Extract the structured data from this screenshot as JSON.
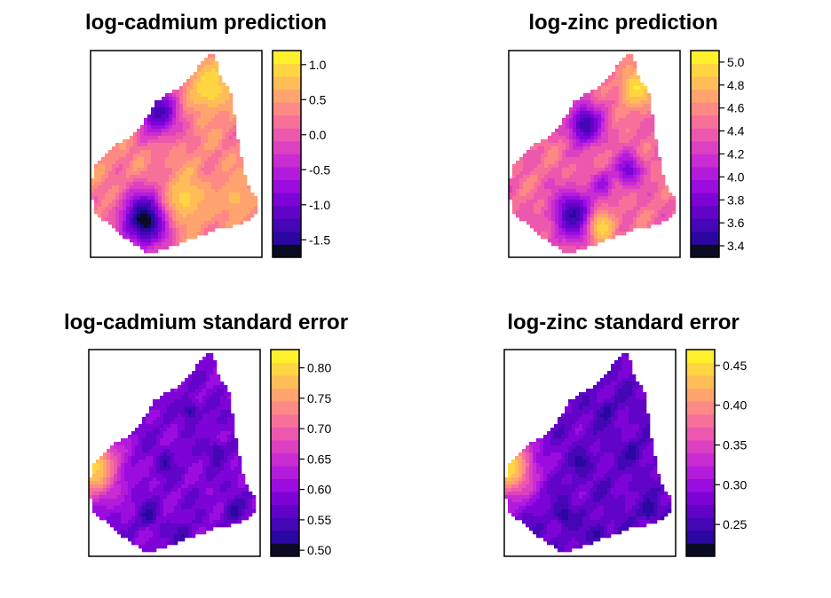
{
  "palette": [
    "#0d0887",
    "#2a07a0",
    "#4506b5",
    "#6203c8",
    "#7d03d6",
    "#9a0dde",
    "#b31bdc",
    "#c92cd2",
    "#dc41c2",
    "#ec58ae",
    "#f7709a",
    "#fd8a85",
    "#ffa46f",
    "#ffbd58",
    "#ffd542",
    "#fff02c"
  ],
  "palette_dark_end": "#0b0b24",
  "chart_data": [
    {
      "type": "heatmap",
      "title": "log-cadmium prediction",
      "legend_ticks": [
        "1.0",
        "0.5",
        "0.0",
        "-0.5",
        "-1.0",
        "-1.5"
      ],
      "legend_range": [
        -1.75,
        1.2
      ],
      "tick_values": [
        1.0,
        0.5,
        0.0,
        -0.5,
        -1.0,
        -1.5
      ],
      "base_level": 0.35,
      "hotspots": [
        {
          "u": 0.4,
          "v": 0.3,
          "r": 0.12,
          "level": -1.3
        },
        {
          "u": 0.32,
          "v": 0.82,
          "r": 0.14,
          "level": -1.8
        },
        {
          "u": 0.7,
          "v": 0.18,
          "r": 0.12,
          "level": 1.0
        },
        {
          "u": 0.55,
          "v": 0.72,
          "r": 0.12,
          "level": 0.9
        },
        {
          "u": 0.85,
          "v": 0.72,
          "r": 0.1,
          "level": 0.7
        }
      ]
    },
    {
      "type": "heatmap",
      "title": "log-zinc prediction",
      "legend_ticks": [
        "5.0",
        "4.8",
        "4.6",
        "4.4",
        "4.2",
        "4.0",
        "3.8",
        "3.6",
        "3.4"
      ],
      "legend_range": [
        3.3,
        5.1
      ],
      "tick_values": [
        5.0,
        4.8,
        4.6,
        4.4,
        4.2,
        4.0,
        3.8,
        3.6,
        3.4
      ],
      "base_level": 4.45,
      "hotspots": [
        {
          "u": 0.45,
          "v": 0.36,
          "r": 0.1,
          "level": 3.55
        },
        {
          "u": 0.7,
          "v": 0.58,
          "r": 0.08,
          "level": 3.8
        },
        {
          "u": 0.38,
          "v": 0.8,
          "r": 0.12,
          "level": 3.5
        },
        {
          "u": 0.75,
          "v": 0.18,
          "r": 0.1,
          "level": 5.0
        },
        {
          "u": 0.55,
          "v": 0.86,
          "r": 0.08,
          "level": 4.95
        },
        {
          "u": 0.55,
          "v": 0.65,
          "r": 0.06,
          "level": 3.9
        }
      ]
    },
    {
      "type": "heatmap",
      "title": "log-cadmium standard error",
      "legend_ticks": [
        "0.80",
        "0.75",
        "0.70",
        "0.65",
        "0.60",
        "0.55",
        "0.50"
      ],
      "legend_range": [
        0.49,
        0.83
      ],
      "tick_values": [
        0.8,
        0.75,
        0.7,
        0.65,
        0.6,
        0.55,
        0.5
      ],
      "base_level": 0.585,
      "hotspots": [
        {
          "u": 0.02,
          "v": 0.57,
          "r": 0.16,
          "level": 0.8
        },
        {
          "u": 0.45,
          "v": 0.55,
          "r": 0.05,
          "level": 0.53
        },
        {
          "u": 0.6,
          "v": 0.3,
          "r": 0.05,
          "level": 0.53
        },
        {
          "u": 0.35,
          "v": 0.8,
          "r": 0.05,
          "level": 0.52
        },
        {
          "u": 0.75,
          "v": 0.5,
          "r": 0.05,
          "level": 0.53
        },
        {
          "u": 0.85,
          "v": 0.78,
          "r": 0.05,
          "level": 0.52
        },
        {
          "u": 0.55,
          "v": 0.9,
          "r": 0.05,
          "level": 0.53
        }
      ]
    },
    {
      "type": "heatmap",
      "title": "log-zinc standard error",
      "legend_ticks": [
        "0.45",
        "0.40",
        "0.35",
        "0.30",
        "0.25"
      ],
      "legend_range": [
        0.21,
        0.47
      ],
      "tick_values": [
        0.45,
        0.4,
        0.35,
        0.3,
        0.25
      ],
      "base_level": 0.27,
      "hotspots": [
        {
          "u": 0.02,
          "v": 0.57,
          "r": 0.16,
          "level": 0.45
        },
        {
          "u": 0.45,
          "v": 0.55,
          "r": 0.05,
          "level": 0.235
        },
        {
          "u": 0.6,
          "v": 0.3,
          "r": 0.05,
          "level": 0.235
        },
        {
          "u": 0.35,
          "v": 0.8,
          "r": 0.05,
          "level": 0.23
        },
        {
          "u": 0.75,
          "v": 0.5,
          "r": 0.05,
          "level": 0.235
        },
        {
          "u": 0.85,
          "v": 0.78,
          "r": 0.05,
          "level": 0.23
        },
        {
          "u": 0.55,
          "v": 0.9,
          "r": 0.05,
          "level": 0.235
        }
      ]
    }
  ]
}
